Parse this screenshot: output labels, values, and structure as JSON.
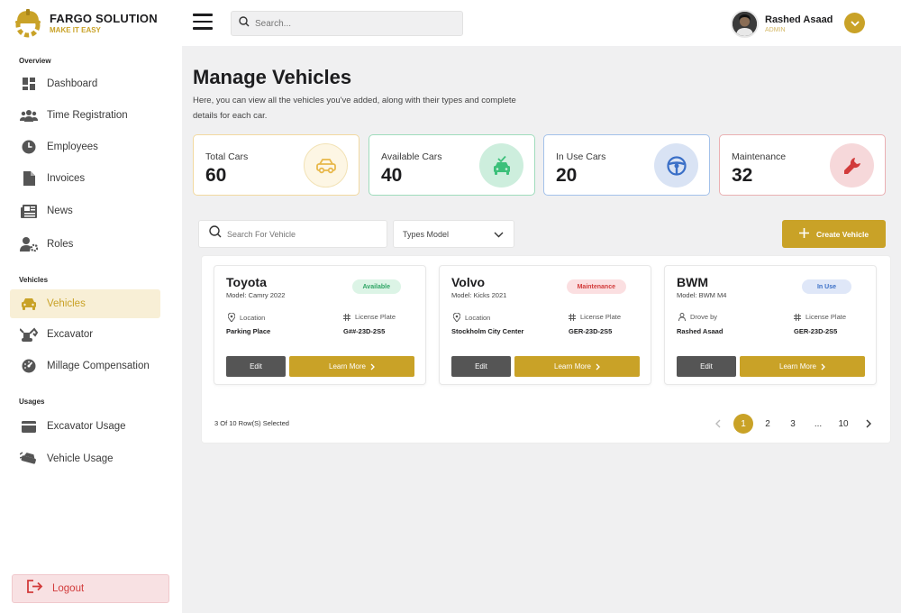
{
  "brand": {
    "name": "FARGO SOLUTION",
    "tagline": "MAKE IT EASY"
  },
  "sidebar": {
    "sections": {
      "overview": "Overview",
      "vehicles": "Vehicles",
      "usages": "Usages"
    },
    "items": [
      {
        "label": "Dashboard",
        "icon": "dashboard-icon"
      },
      {
        "label": "Time Registration",
        "icon": "people-icon"
      },
      {
        "label": "Employees",
        "icon": "clock-icon"
      },
      {
        "label": "Invoices",
        "icon": "file-icon"
      },
      {
        "label": "News",
        "icon": "newspaper-icon"
      },
      {
        "label": "Roles",
        "icon": "user-gear-icon"
      },
      {
        "label": "Vehicles",
        "icon": "car-icon",
        "active": true
      },
      {
        "label": "Excavator",
        "icon": "excavator-icon"
      },
      {
        "label": "Millage Compensation",
        "icon": "gauge-icon"
      },
      {
        "label": "Excavator Usage",
        "icon": "card-icon"
      },
      {
        "label": "Vehicle Usage",
        "icon": "car-usage-icon"
      }
    ],
    "logout_label": "Logout"
  },
  "topbar": {
    "search_placeholder": "Search...",
    "user_name": "Rashed Asaad",
    "user_role": "ADMIN"
  },
  "page": {
    "title": "Manage Vehicles",
    "description": "Here, you can view all the vehicles you've added, along with their types and complete details for each car."
  },
  "stats": [
    {
      "label": "Total Cars",
      "value": "60",
      "icon": "car-outline-icon",
      "color": "#e8b84a"
    },
    {
      "label": "Available Cars",
      "value": "40",
      "icon": "car-check-icon",
      "color": "#3cc07a"
    },
    {
      "label": "In Use Cars",
      "value": "20",
      "icon": "steering-wheel-icon",
      "color": "#3a6fc7"
    },
    {
      "label": "Maintenance",
      "value": "32",
      "icon": "wrench-icon",
      "color": "#d23b3b"
    }
  ],
  "toolbar": {
    "vehicle_search_placeholder": "Search For Vehicle",
    "types_model_label": "Types Model",
    "create_label": "Create Vehicle"
  },
  "vehicles": [
    {
      "name": "Toyota",
      "model": "Model: Camry 2022",
      "status": "Available",
      "status_color": "#2fa565",
      "status_bg": "#dcf4e6",
      "field1_label": "Location",
      "field1_value": "Parking Place",
      "plate_label": "License Plate",
      "plate": "G##-23D-2S5",
      "edit_label": "Edit",
      "more_label": "Learn More"
    },
    {
      "name": "Volvo",
      "model": "Model: Kicks 2021",
      "status": "Maintenance",
      "status_color": "#d23b3b",
      "status_bg": "#fbdfe1",
      "field1_label": "Location",
      "field1_value": "Stockholm City Center",
      "plate_label": "License Plate",
      "plate": "GER-23D-2S5",
      "edit_label": "Edit",
      "more_label": "Learn More"
    },
    {
      "name": "BWM",
      "model": "Model: BWM M4",
      "status": "In Use",
      "status_color": "#3a6fc7",
      "status_bg": "#dfe7f8",
      "field1_label": "Drove by",
      "field1_value": "Rashed Asaad",
      "plate_label": "License Plate",
      "plate": "GER-23D-2S5",
      "edit_label": "Edit",
      "more_label": "Learn More"
    }
  ],
  "footer": {
    "selected_text": "3 Of 10 Row(S) Selected",
    "pages": [
      "1",
      "2",
      "3",
      "...",
      "10"
    ],
    "current_page": "1"
  }
}
